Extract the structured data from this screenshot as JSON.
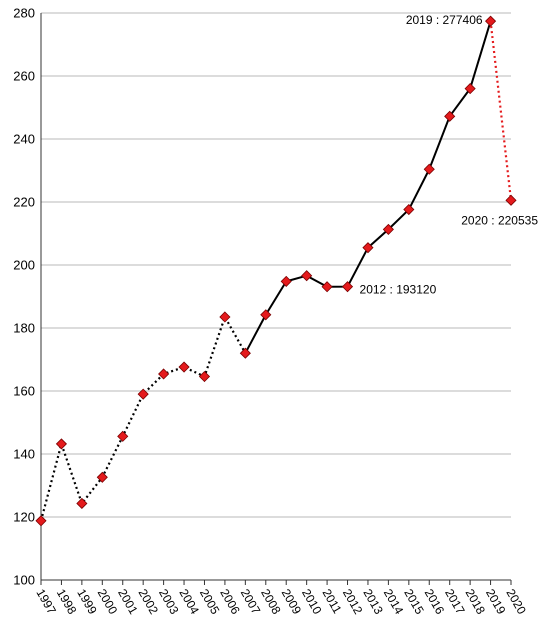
{
  "chart_data": {
    "type": "line",
    "title": "",
    "xlabel": "",
    "ylabel": "",
    "x": [
      "1997",
      "1998",
      "1999",
      "2000",
      "2001",
      "2002",
      "2003",
      "2004",
      "2005",
      "2006",
      "2007",
      "2008",
      "2009",
      "2010",
      "2011",
      "2012",
      "2013",
      "2014",
      "2015",
      "2016",
      "2017",
      "2018",
      "2019",
      "2020"
    ],
    "y_ticks": [
      100,
      120,
      140,
      160,
      180,
      200,
      220,
      240,
      260,
      280
    ],
    "ylim": [
      100,
      280
    ],
    "grid": "horizontal",
    "series": [
      {
        "values": [
          118.8,
          143.2,
          124.3,
          132.6,
          145.6,
          159.0,
          165.4,
          167.6,
          164.6,
          183.5,
          172.0,
          184.2,
          194.8,
          196.6,
          193.1,
          193.12,
          205.5,
          211.3,
          217.6,
          230.4,
          247.2,
          256.0,
          277.406,
          220.535
        ],
        "color": "#e41a1c",
        "marker": "diamond",
        "segments": [
          {
            "from": "1997",
            "to": "2007",
            "style": "dotted",
            "color": "#000000"
          },
          {
            "from": "2007",
            "to": "2019",
            "style": "solid",
            "color": "#000000"
          },
          {
            "from": "2019",
            "to": "2020",
            "style": "dotted",
            "color": "#e41a1c"
          }
        ]
      }
    ],
    "annotations": [
      {
        "x": "2019",
        "text": "2019 : 277406"
      },
      {
        "x": "2020",
        "text": "2020 : 220535"
      },
      {
        "x": "2012",
        "text": "2012 : 193120"
      }
    ]
  }
}
